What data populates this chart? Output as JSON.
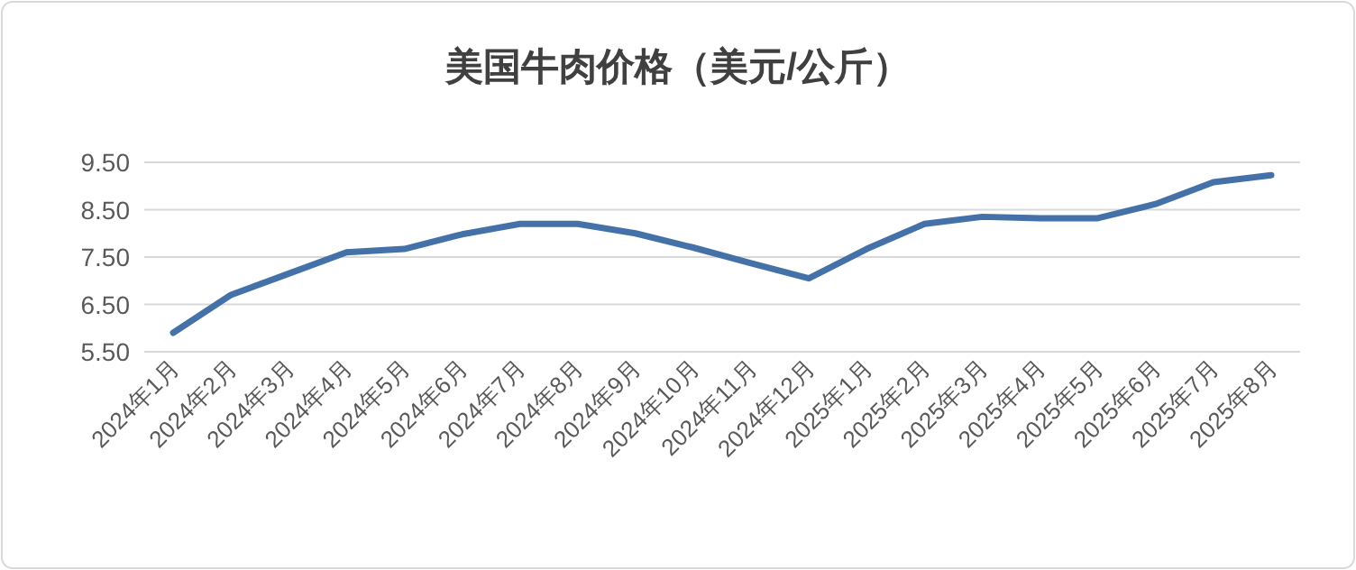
{
  "chart_data": {
    "type": "line",
    "title": "美国牛肉价格（美元/公斤）",
    "categories": [
      "2024年1月",
      "2024年2月",
      "2024年3月",
      "2024年4月",
      "2024年5月",
      "2024年6月",
      "2024年7月",
      "2024年8月",
      "2024年9月",
      "2024年10月",
      "2024年11月",
      "2024年12月",
      "2025年1月",
      "2025年2月",
      "2025年3月",
      "2025年4月",
      "2025年5月",
      "2025年6月",
      "2025年7月",
      "2025年8月"
    ],
    "series": [
      {
        "color": "#4472a8",
        "values": [
          5.9,
          6.7,
          7.15,
          7.6,
          7.67,
          7.98,
          8.2,
          8.2,
          8.0,
          7.7,
          7.37,
          7.05,
          7.67,
          8.2,
          8.35,
          8.32,
          8.32,
          8.62,
          9.08,
          9.23
        ]
      }
    ],
    "ylim": [
      5.5,
      9.5
    ],
    "yticks": [
      {
        "value": 5.5,
        "label": "5.50"
      },
      {
        "value": 6.5,
        "label": "6.50"
      },
      {
        "value": 7.5,
        "label": "7.50"
      },
      {
        "value": 8.5,
        "label": "8.50"
      },
      {
        "value": 9.5,
        "label": "9.50"
      }
    ],
    "grid": "y",
    "marker": "none",
    "line_style": "solid"
  }
}
